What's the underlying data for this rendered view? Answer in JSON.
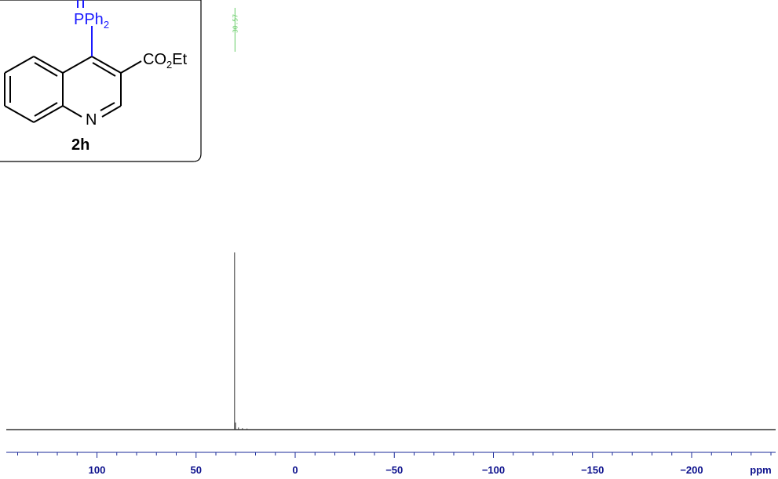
{
  "compound": {
    "phosphorus_group": "PPh",
    "phosphorus_sub": "2",
    "ester_main": "CO",
    "ester_sub": "2",
    "ester_tail": "Et",
    "nitrogen": "N",
    "label": "2h"
  },
  "chart_data": {
    "type": "line",
    "title": "",
    "xlabel": "ppm",
    "ylabel": "",
    "x_direction": "decreasing",
    "xlim": [
      140,
      -245
    ],
    "x_ticks": [
      100,
      50,
      0,
      -50,
      -100,
      -150,
      -200
    ],
    "x_tick_labels": [
      "100",
      "50",
      "0",
      "−50",
      "−100",
      "−150",
      "−200"
    ],
    "grid": false,
    "peak_labels": [
      "30.57"
    ],
    "series": [
      {
        "points": [
          {
            "x": 30.57,
            "y": 100
          },
          {
            "x": 30.1,
            "y": 4
          },
          {
            "x": 28.6,
            "y": 1.2
          },
          {
            "x": 26.6,
            "y": 0.8
          },
          {
            "x": 24.3,
            "y": 0.6
          }
        ]
      }
    ],
    "colors": {
      "spectrum": "#333333",
      "axis": "#1a2a99",
      "tick_label": "#0b0f8c",
      "peak_label": "#66cc66"
    }
  }
}
